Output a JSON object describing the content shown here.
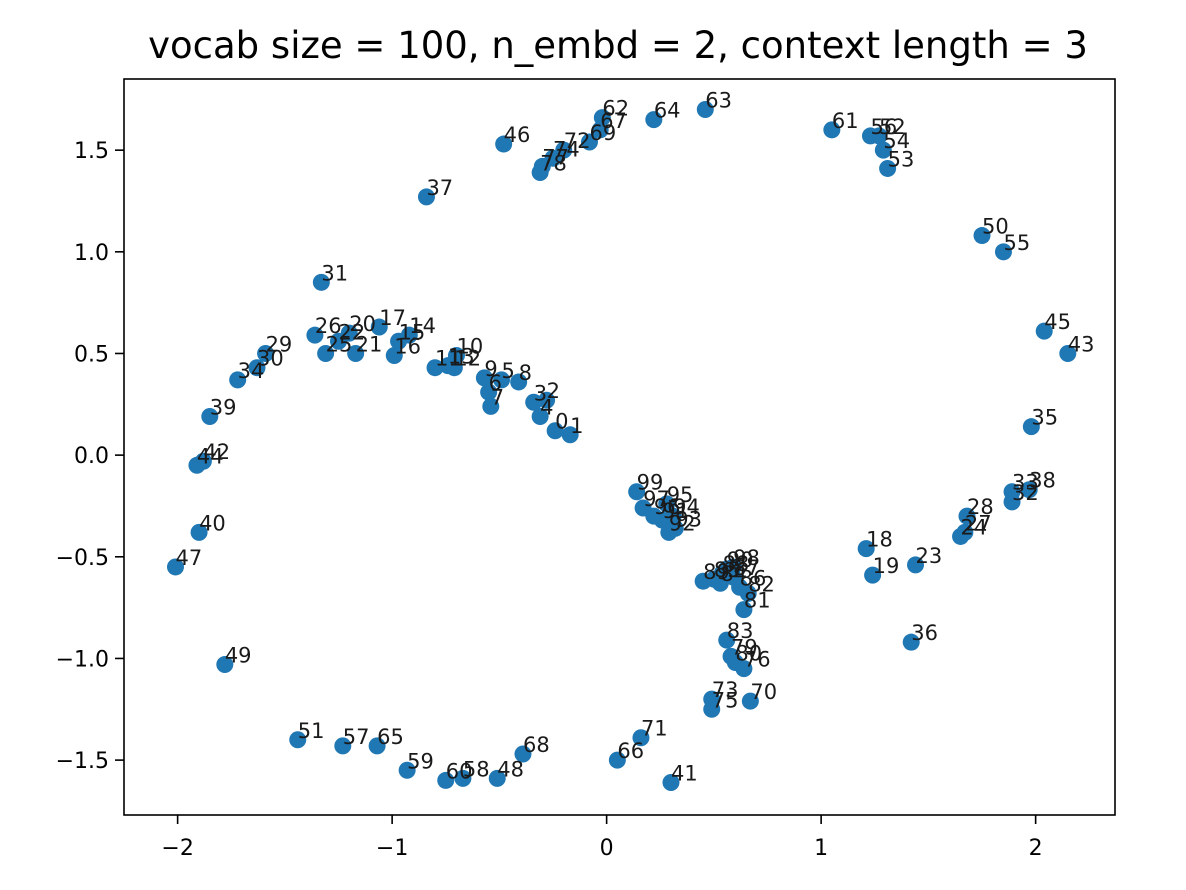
{
  "chart_data": {
    "type": "scatter",
    "title": "vocab size = 100, n_embd = 2, context length = 3",
    "xlabel": "",
    "ylabel": "",
    "xlim": [
      -2.25,
      2.37
    ],
    "ylim": [
      -1.77,
      1.85
    ],
    "xticks": [
      -2,
      -1,
      0,
      1,
      2
    ],
    "xtick_labels": [
      "−2",
      "−1",
      "0",
      "1",
      "2"
    ],
    "yticks": [
      -1.5,
      -1.0,
      -0.5,
      0.0,
      0.5,
      1.0,
      1.5
    ],
    "ytick_labels": [
      "−1.5",
      "−1.0",
      "−0.5",
      "0.0",
      "0.5",
      "1.0",
      "1.5"
    ],
    "grid": false,
    "marker_color": "#1f77b4",
    "points": [
      {
        "label": "0",
        "x": -0.24,
        "y": 0.12
      },
      {
        "label": "1",
        "x": -0.17,
        "y": 0.1
      },
      {
        "label": "2",
        "x": -0.28,
        "y": 0.27
      },
      {
        "label": "3",
        "x": -0.34,
        "y": 0.26
      },
      {
        "label": "4",
        "x": -0.31,
        "y": 0.19
      },
      {
        "label": "5",
        "x": -0.49,
        "y": 0.37
      },
      {
        "label": "6",
        "x": -0.55,
        "y": 0.31
      },
      {
        "label": "7",
        "x": -0.54,
        "y": 0.24
      },
      {
        "label": "8",
        "x": -0.41,
        "y": 0.36
      },
      {
        "label": "9",
        "x": -0.57,
        "y": 0.38
      },
      {
        "label": "10",
        "x": -0.7,
        "y": 0.49
      },
      {
        "label": "11",
        "x": -0.8,
        "y": 0.43
      },
      {
        "label": "12",
        "x": -0.71,
        "y": 0.43
      },
      {
        "label": "13",
        "x": -0.74,
        "y": 0.44
      },
      {
        "label": "14",
        "x": -0.92,
        "y": 0.59
      },
      {
        "label": "15",
        "x": -0.97,
        "y": 0.56
      },
      {
        "label": "16",
        "x": -0.99,
        "y": 0.49
      },
      {
        "label": "17",
        "x": -1.06,
        "y": 0.63
      },
      {
        "label": "18",
        "x": 1.21,
        "y": -0.46
      },
      {
        "label": "19",
        "x": 1.24,
        "y": -0.59
      },
      {
        "label": "20",
        "x": -1.2,
        "y": 0.6
      },
      {
        "label": "21",
        "x": -1.17,
        "y": 0.5
      },
      {
        "label": "22",
        "x": -1.25,
        "y": 0.56
      },
      {
        "label": "23",
        "x": 1.44,
        "y": -0.54
      },
      {
        "label": "24",
        "x": 1.65,
        "y": -0.4
      },
      {
        "label": "25",
        "x": -1.31,
        "y": 0.5
      },
      {
        "label": "26",
        "x": -1.36,
        "y": 0.59
      },
      {
        "label": "27",
        "x": 1.67,
        "y": -0.38
      },
      {
        "label": "28",
        "x": 1.68,
        "y": -0.3
      },
      {
        "label": "29",
        "x": -1.59,
        "y": 0.5
      },
      {
        "label": "30",
        "x": -1.63,
        "y": 0.43
      },
      {
        "label": "31",
        "x": -1.33,
        "y": 0.85
      },
      {
        "label": "32",
        "x": 1.89,
        "y": -0.23
      },
      {
        "label": "33",
        "x": 1.89,
        "y": -0.18
      },
      {
        "label": "34",
        "x": -1.72,
        "y": 0.37
      },
      {
        "label": "35",
        "x": 1.98,
        "y": 0.14
      },
      {
        "label": "36",
        "x": 1.42,
        "y": -0.92
      },
      {
        "label": "37",
        "x": -0.84,
        "y": 1.27
      },
      {
        "label": "38",
        "x": 1.97,
        "y": -0.17
      },
      {
        "label": "39",
        "x": -1.85,
        "y": 0.19
      },
      {
        "label": "40",
        "x": -1.9,
        "y": -0.38
      },
      {
        "label": "41",
        "x": 0.3,
        "y": -1.61
      },
      {
        "label": "42",
        "x": -1.88,
        "y": -0.03
      },
      {
        "label": "43",
        "x": 2.15,
        "y": 0.5
      },
      {
        "label": "44",
        "x": -1.91,
        "y": -0.05
      },
      {
        "label": "45",
        "x": 2.04,
        "y": 0.61
      },
      {
        "label": "46",
        "x": -0.48,
        "y": 1.53
      },
      {
        "label": "47",
        "x": -2.01,
        "y": -0.55
      },
      {
        "label": "48",
        "x": -0.51,
        "y": -1.59
      },
      {
        "label": "49",
        "x": -1.78,
        "y": -1.03
      },
      {
        "label": "50",
        "x": 1.75,
        "y": 1.08
      },
      {
        "label": "51",
        "x": -1.44,
        "y": -1.4
      },
      {
        "label": "52",
        "x": 1.27,
        "y": 1.57
      },
      {
        "label": "53",
        "x": 1.31,
        "y": 1.41
      },
      {
        "label": "54",
        "x": 1.29,
        "y": 1.5
      },
      {
        "label": "55",
        "x": 1.85,
        "y": 1.0
      },
      {
        "label": "56",
        "x": 1.23,
        "y": 1.57
      },
      {
        "label": "57",
        "x": -1.23,
        "y": -1.43
      },
      {
        "label": "58",
        "x": -0.67,
        "y": -1.59
      },
      {
        "label": "59",
        "x": -0.93,
        "y": -1.55
      },
      {
        "label": "60",
        "x": -0.75,
        "y": -1.6
      },
      {
        "label": "61",
        "x": 1.05,
        "y": 1.6
      },
      {
        "label": "62",
        "x": -0.02,
        "y": 1.66
      },
      {
        "label": "63",
        "x": 0.46,
        "y": 1.7
      },
      {
        "label": "64",
        "x": 0.22,
        "y": 1.65
      },
      {
        "label": "65",
        "x": -1.07,
        "y": -1.43
      },
      {
        "label": "66",
        "x": 0.05,
        "y": -1.5
      },
      {
        "label": "67",
        "x": -0.03,
        "y": 1.6
      },
      {
        "label": "68",
        "x": -0.39,
        "y": -1.47
      },
      {
        "label": "69",
        "x": -0.08,
        "y": 1.54
      },
      {
        "label": "70",
        "x": 0.67,
        "y": -1.21
      },
      {
        "label": "71",
        "x": 0.16,
        "y": -1.39
      },
      {
        "label": "72",
        "x": -0.2,
        "y": 1.5
      },
      {
        "label": "73",
        "x": 0.49,
        "y": -1.2
      },
      {
        "label": "74",
        "x": -0.25,
        "y": 1.46
      },
      {
        "label": "75",
        "x": 0.49,
        "y": -1.25
      },
      {
        "label": "76",
        "x": 0.64,
        "y": -1.05
      },
      {
        "label": "77",
        "x": -0.3,
        "y": 1.42
      },
      {
        "label": "78",
        "x": -0.31,
        "y": 1.39
      },
      {
        "label": "79",
        "x": 0.58,
        "y": -0.99
      },
      {
        "label": "80",
        "x": 0.6,
        "y": -1.02
      },
      {
        "label": "81",
        "x": 0.64,
        "y": -0.76
      },
      {
        "label": "82",
        "x": 0.66,
        "y": -0.68
      },
      {
        "label": "83",
        "x": 0.56,
        "y": -0.91
      },
      {
        "label": "84",
        "x": 0.53,
        "y": -0.63
      },
      {
        "label": "85",
        "x": 0.5,
        "y": -0.61
      },
      {
        "label": "86",
        "x": 0.62,
        "y": -0.65
      },
      {
        "label": "87",
        "x": 0.59,
        "y": -0.6
      },
      {
        "label": "88",
        "x": 0.54,
        "y": -0.58
      },
      {
        "label": "89",
        "x": 0.45,
        "y": -0.62
      },
      {
        "label": "90",
        "x": 0.56,
        "y": -0.56
      },
      {
        "label": "91",
        "x": 0.26,
        "y": -0.32
      },
      {
        "label": "92",
        "x": 0.29,
        "y": -0.38
      },
      {
        "label": "93",
        "x": 0.32,
        "y": -0.36
      },
      {
        "label": "94",
        "x": 0.31,
        "y": -0.3
      },
      {
        "label": "95",
        "x": 0.28,
        "y": -0.24
      },
      {
        "label": "96",
        "x": 0.22,
        "y": -0.3
      },
      {
        "label": "97",
        "x": 0.17,
        "y": -0.26
      },
      {
        "label": "98",
        "x": 0.59,
        "y": -0.55
      },
      {
        "label": "99",
        "x": 0.14,
        "y": -0.18
      }
    ]
  }
}
